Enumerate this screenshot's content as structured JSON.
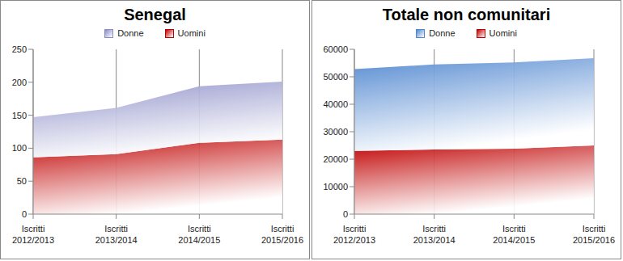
{
  "chart_data": [
    {
      "type": "area",
      "title": "Senegal",
      "stacked": true,
      "grid": true,
      "legend": "top",
      "categories": [
        "Iscritti 2012/2013",
        "Iscritti 2013/2014",
        "Iscritti 2014/2015",
        "Iscritti 2015/2016"
      ],
      "series": [
        {
          "name": "Donne",
          "color": "#8a8cc6",
          "values": [
            61,
            70,
            86,
            88
          ]
        },
        {
          "name": "Uomini",
          "color": "#c00000",
          "values": [
            86,
            91,
            108,
            113
          ]
        }
      ],
      "ylim": [
        0,
        250
      ],
      "yticks": [
        0,
        50,
        100,
        150,
        200,
        250
      ]
    },
    {
      "type": "area",
      "title": "Totale non comunitari",
      "stacked": true,
      "grid": true,
      "legend": "top",
      "categories": [
        "Iscritti 2012/2013",
        "Iscritti 2013/2014",
        "Iscritti 2014/2015",
        "Iscritti 2015/2016"
      ],
      "series": [
        {
          "name": "Donne",
          "color": "#4f86d0",
          "values": [
            29800,
            31000,
            31400,
            31800
          ]
        },
        {
          "name": "Uomini",
          "color": "#c00000",
          "values": [
            23000,
            23500,
            23800,
            25000
          ]
        }
      ],
      "ylim": [
        0,
        60000
      ],
      "yticks": [
        0,
        10000,
        20000,
        30000,
        40000,
        50000,
        60000
      ]
    }
  ]
}
